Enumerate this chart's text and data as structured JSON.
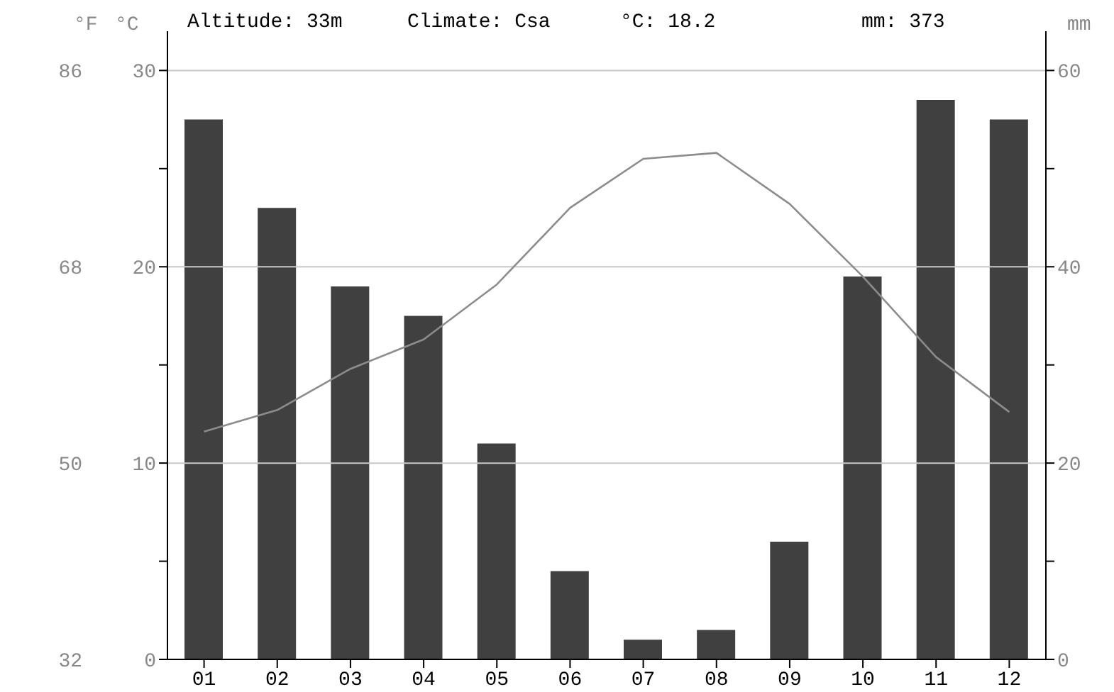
{
  "chart_data": {
    "type": "bar",
    "annotations": [
      "Altitude: 33m",
      "Climate: Csa",
      "°C: 18.2",
      "mm: 373"
    ],
    "categories": [
      "01",
      "02",
      "03",
      "04",
      "05",
      "06",
      "07",
      "08",
      "09",
      "10",
      "11",
      "12"
    ],
    "series": [
      {
        "axis": "y2",
        "color": "#404040",
        "values": [
          55,
          46,
          38,
          35,
          22,
          9,
          2,
          3,
          12,
          39,
          57,
          55
        ]
      },
      {
        "type": "line",
        "axis": "y",
        "color": "#8c8c8c",
        "values": [
          11.6,
          12.7,
          14.8,
          16.3,
          19.1,
          23.0,
          25.5,
          25.8,
          23.2,
          19.5,
          15.4,
          12.6
        ]
      }
    ],
    "ylabel": "°C",
    "y2label": "mm",
    "y3label": "°F",
    "ylim": [
      0,
      32
    ],
    "yticks": [
      0,
      {
        "value": 5,
        "label": null
      },
      10,
      {
        "value": 15,
        "label": null
      },
      20,
      {
        "value": 25,
        "label": null
      },
      30
    ],
    "y2lim": [
      0,
      64
    ],
    "y2ticks": [
      0,
      {
        "value": 10,
        "label": null
      },
      20,
      {
        "value": 30,
        "label": null
      },
      40,
      {
        "value": 50,
        "label": null
      },
      60
    ],
    "y3lim": [
      32,
      89.6
    ],
    "y3ticks": [
      32,
      50,
      68,
      86
    ],
    "grid": "y",
    "marker": "none"
  }
}
